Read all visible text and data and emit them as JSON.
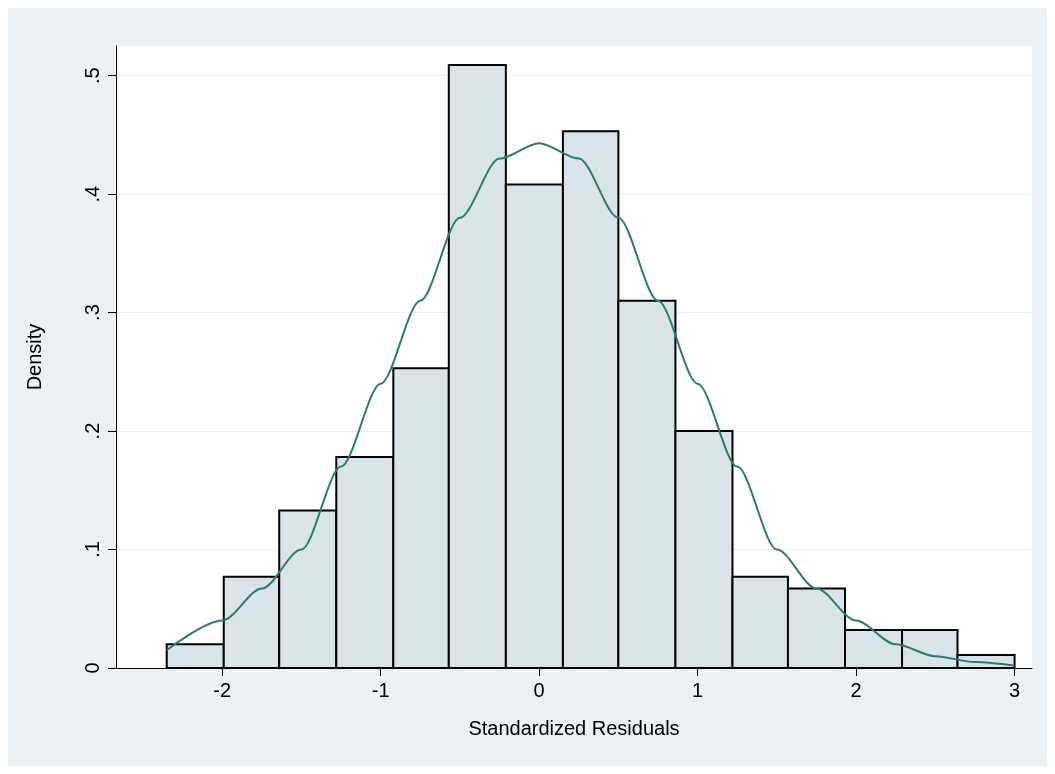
{
  "chart_data": {
    "type": "histogram",
    "xlabel": "Standardized Residuals",
    "ylabel": "Density",
    "bins": [
      -2.35,
      -1.99,
      -1.64,
      -1.28,
      -0.92,
      -0.57,
      -0.21,
      0.15,
      0.5,
      0.86,
      1.22,
      1.57,
      1.93,
      2.29,
      2.64,
      3.0
    ],
    "values": [
      0.02,
      0.077,
      0.133,
      0.178,
      0.253,
      0.509,
      0.408,
      0.453,
      0.31,
      0.2,
      0.077,
      0.067,
      0.032,
      0.032,
      0.011
    ],
    "color": "#d9e4ea",
    "series": [
      {
        "type": "line",
        "color": "#2e7a72",
        "x": [
          -2.35,
          -2,
          -1.75,
          -1.5,
          -1.25,
          -1,
          -0.75,
          -0.5,
          -0.25,
          0,
          0.25,
          0.5,
          0.75,
          1,
          1.25,
          1.5,
          1.75,
          2,
          2.25,
          2.5,
          2.75,
          3
        ],
        "values": [
          0.015,
          0.04,
          0.067,
          0.1,
          0.17,
          0.24,
          0.31,
          0.38,
          0.43,
          0.443,
          0.43,
          0.38,
          0.31,
          0.24,
          0.17,
          0.1,
          0.067,
          0.04,
          0.02,
          0.01,
          0.005,
          0.002
        ]
      }
    ],
    "xlim": [
      -2.67,
      3.11
    ],
    "xticks": [
      -2,
      -1,
      0,
      1,
      2,
      3
    ],
    "ylim": [
      0,
      0.525
    ],
    "yticks": [
      0,
      {
        "value": 0.1,
        "label": ".1"
      },
      {
        "value": 0.2,
        "label": ".2"
      },
      {
        "value": 0.3,
        "label": ".3"
      },
      {
        "value": 0.4,
        "label": ".4"
      },
      {
        "value": 0.5,
        "label": ".5"
      }
    ],
    "grid": "y",
    "marker": "none",
    "line_style": "solid"
  }
}
